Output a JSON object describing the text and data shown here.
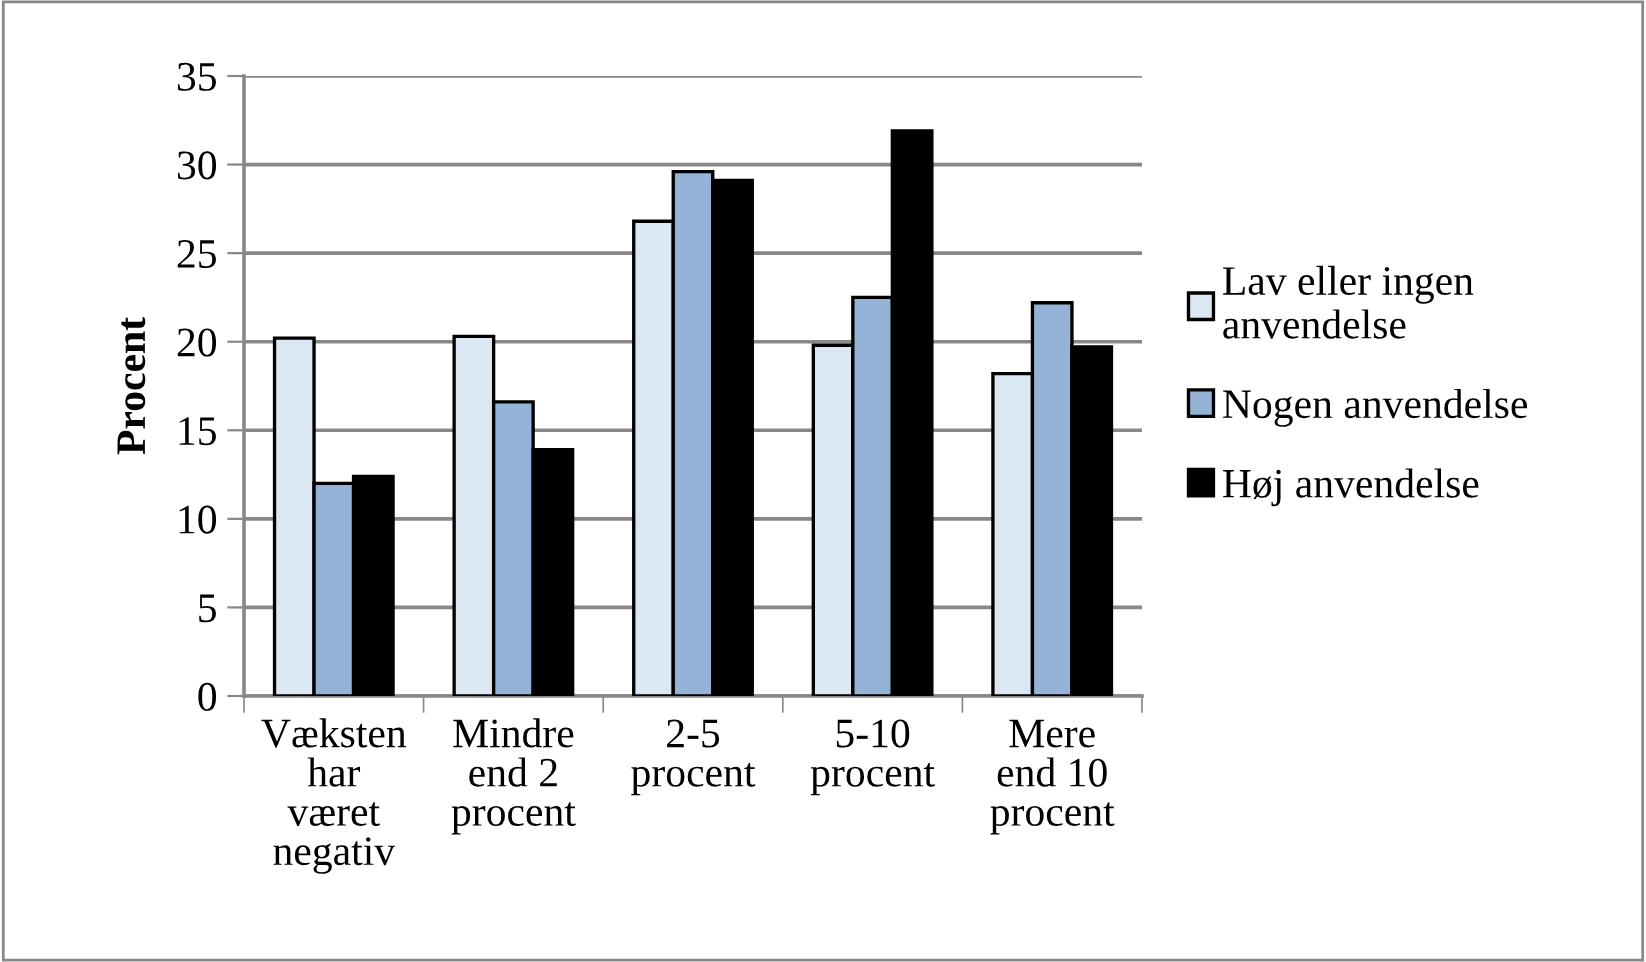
{
  "chart_data": {
    "type": "bar",
    "ylabel": "Procent",
    "categories": [
      "Væksten\nhar\nværet\nnegativ",
      "Mindre\nend 2\nprocent",
      "2-5\nprocent",
      "5-10\nprocent",
      "Mere\nend 10\nprocent"
    ],
    "series": [
      {
        "name": "Lav eller ingen\nanvendelse",
        "color": "#dbe8f3",
        "values": [
          20.2,
          20.3,
          26.8,
          19.8,
          18.2
        ]
      },
      {
        "name": "Nogen anvendelse",
        "color": "#95b3d7",
        "values": [
          12.0,
          16.6,
          29.6,
          22.5,
          22.2
        ]
      },
      {
        "name": "Høj anvendelse",
        "color": "#000000",
        "values": [
          12.4,
          13.9,
          29.1,
          31.9,
          19.7
        ]
      }
    ],
    "ylim": [
      0,
      35
    ],
    "yticks": [
      0,
      5,
      10,
      15,
      20,
      25,
      30,
      35
    ],
    "grid": "y",
    "legend": "right"
  }
}
